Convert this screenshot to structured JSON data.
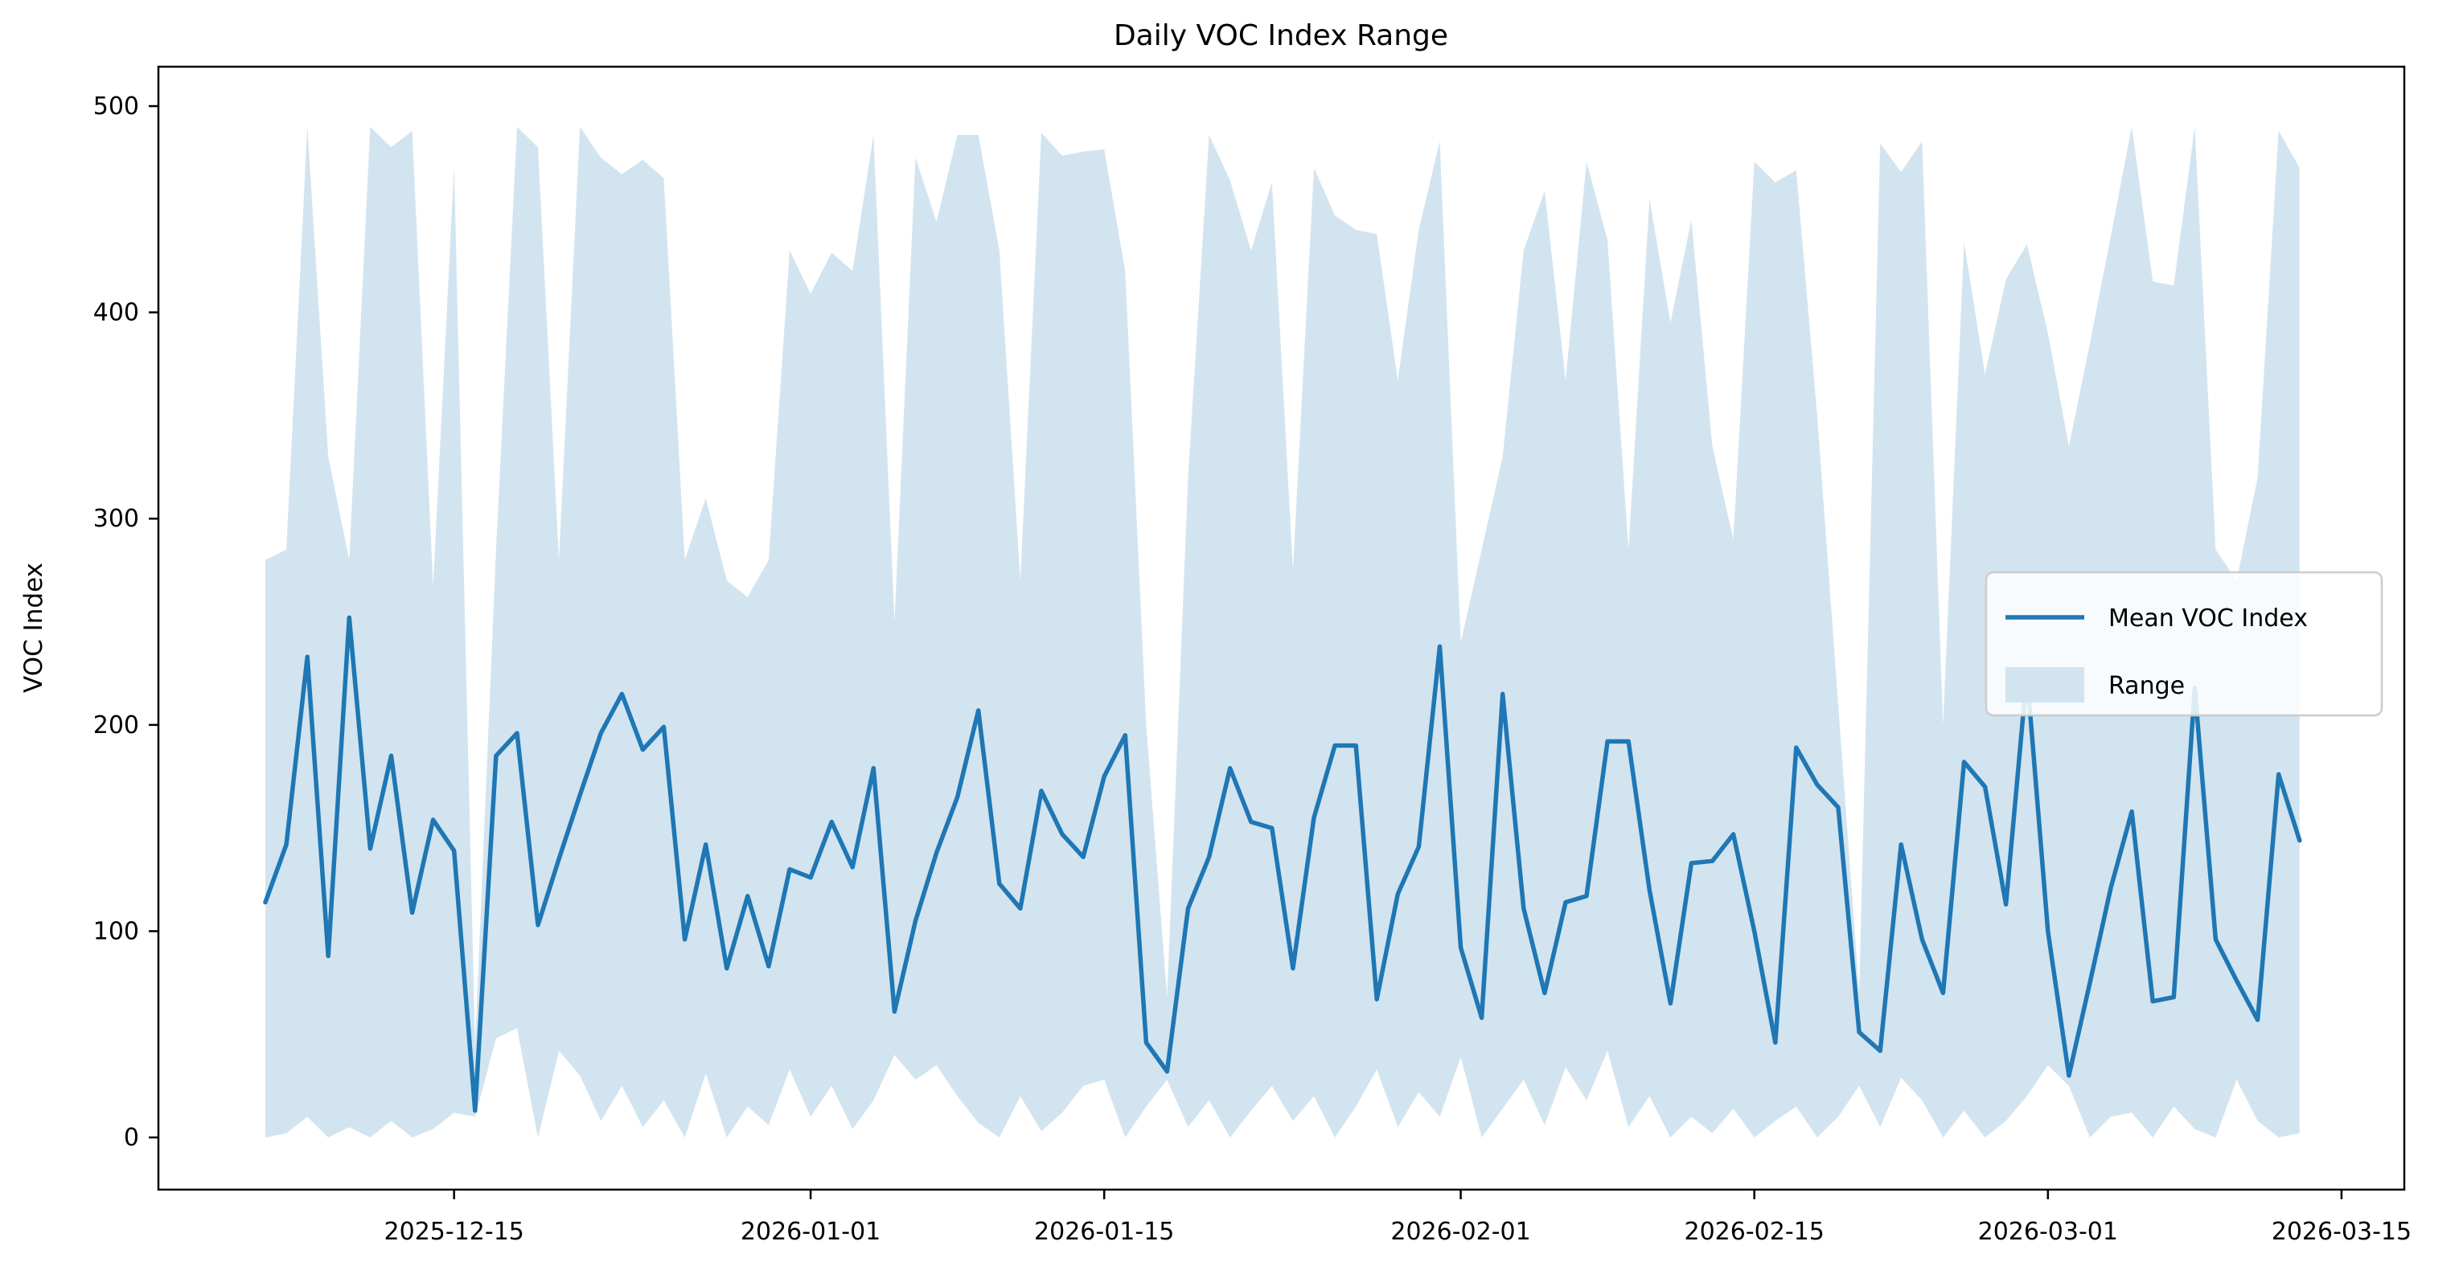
{
  "chart_data": {
    "type": "line",
    "title": "Daily VOC Index Range",
    "ylabel": "VOC Index",
    "xlabel": "",
    "legend": {
      "line_label": "Mean VOC Index",
      "band_label": "Range",
      "position": "center right"
    },
    "colors": {
      "line": "#1f77b4",
      "band": "#d2e4f0",
      "legend_border": "#cccccc",
      "spine": "#000000"
    },
    "ylim": [
      -25.3,
      519.1
    ],
    "y_ticks": [
      0,
      100,
      200,
      300,
      400,
      500
    ],
    "x_ticks": [
      "2025-12-15",
      "2026-01-01",
      "2026-01-15",
      "2026-02-01",
      "2026-02-15",
      "2026-03-01",
      "2026-03-15"
    ],
    "grid": false,
    "x_start_date": "2025-12-06",
    "dates": [
      "2025-12-06",
      "2025-12-07",
      "2025-12-08",
      "2025-12-09",
      "2025-12-10",
      "2025-12-11",
      "2025-12-12",
      "2025-12-13",
      "2025-12-14",
      "2025-12-15",
      "2025-12-16",
      "2025-12-17",
      "2025-12-18",
      "2025-12-19",
      "2025-12-20",
      "2025-12-21",
      "2025-12-22",
      "2025-12-23",
      "2025-12-24",
      "2025-12-25",
      "2025-12-26",
      "2025-12-27",
      "2025-12-28",
      "2025-12-29",
      "2025-12-30",
      "2025-12-31",
      "2026-01-01",
      "2026-01-02",
      "2026-01-03",
      "2026-01-04",
      "2026-01-05",
      "2026-01-06",
      "2026-01-07",
      "2026-01-08",
      "2026-01-09",
      "2026-01-10",
      "2026-01-11",
      "2026-01-12",
      "2026-01-13",
      "2026-01-14",
      "2026-01-15",
      "2026-01-16",
      "2026-01-17",
      "2026-01-18",
      "2026-01-19",
      "2026-01-20",
      "2026-01-21",
      "2026-01-22",
      "2026-01-23",
      "2026-01-24",
      "2026-01-25",
      "2026-01-26",
      "2026-01-27",
      "2026-01-28",
      "2026-01-29",
      "2026-01-30",
      "2026-01-31",
      "2026-02-01",
      "2026-02-02",
      "2026-02-03",
      "2026-02-04",
      "2026-02-05",
      "2026-02-06",
      "2026-02-07",
      "2026-02-08",
      "2026-02-09",
      "2026-02-10",
      "2026-02-11",
      "2026-02-12",
      "2026-02-13",
      "2026-02-14",
      "2026-02-15",
      "2026-02-16",
      "2026-02-17",
      "2026-02-18",
      "2026-02-19",
      "2026-02-20",
      "2026-02-21",
      "2026-02-22",
      "2026-02-23",
      "2026-02-24",
      "2026-02-25",
      "2026-02-26",
      "2026-02-27",
      "2026-02-28",
      "2026-03-01",
      "2026-03-02",
      "2026-03-03",
      "2026-03-04",
      "2026-03-05",
      "2026-03-06",
      "2026-03-07",
      "2026-03-08",
      "2026-03-09",
      "2026-03-10",
      "2026-03-11",
      "2026-03-12",
      "2026-03-13"
    ],
    "mean": [
      114,
      142,
      233,
      88,
      252,
      140,
      185,
      109,
      154,
      139,
      13,
      185,
      196,
      103,
      135,
      166,
      196,
      215,
      188,
      199,
      96,
      142,
      82,
      117,
      83,
      130,
      126,
      153,
      131,
      179,
      61,
      105,
      138,
      165,
      207,
      123,
      111,
      168,
      147,
      136,
      175,
      195,
      46,
      32,
      111,
      136,
      179,
      153,
      150,
      82,
      155,
      190,
      190,
      67,
      118,
      141,
      238,
      92,
      58,
      215,
      111,
      70,
      114,
      117,
      192,
      192,
      120,
      65,
      133,
      134,
      147,
      100,
      46,
      189,
      171,
      160,
      51,
      42,
      142,
      96,
      70,
      182,
      170,
      113,
      225,
      100,
      30,
      75,
      121,
      158,
      66,
      68,
      218,
      96,
      76,
      57,
      176,
      144
    ],
    "upper": [
      280,
      285,
      490,
      330,
      280,
      490,
      480,
      488,
      267,
      471,
      45,
      285,
      490,
      480,
      280,
      490,
      475,
      467,
      474,
      465,
      280,
      310,
      270,
      262,
      280,
      430,
      409,
      429,
      420,
      486,
      250,
      475,
      444,
      486,
      486,
      430,
      270,
      487,
      476,
      478,
      479,
      420,
      200,
      68,
      320,
      486,
      464,
      430,
      463,
      275,
      470,
      447,
      440,
      438,
      367,
      440,
      483,
      240,
      285,
      330,
      430,
      459,
      367,
      473,
      435,
      285,
      455,
      395,
      445,
      335,
      290,
      473,
      463,
      469,
      350,
      210,
      70,
      482,
      468,
      483,
      200,
      434,
      370,
      416,
      433,
      390,
      335,
      385,
      437,
      490,
      415,
      413,
      490,
      285,
      270,
      320,
      488,
      470
    ],
    "lower": [
      0,
      2,
      10,
      0,
      5,
      0,
      8,
      0,
      4,
      12,
      10,
      48,
      53,
      0,
      42,
      30,
      8,
      25,
      5,
      18,
      0,
      31,
      0,
      15,
      6,
      33,
      10,
      25,
      4,
      18,
      40,
      28,
      35,
      20,
      7,
      0,
      20,
      3,
      12,
      25,
      28,
      0,
      15,
      28,
      5,
      18,
      0,
      13,
      25,
      8,
      20,
      0,
      15,
      33,
      5,
      22,
      10,
      39,
      0,
      14,
      28,
      6,
      34,
      18,
      42,
      5,
      20,
      0,
      10,
      2,
      14,
      0,
      8,
      15,
      0,
      10,
      25,
      5,
      29,
      18,
      0,
      13,
      0,
      8,
      20,
      35,
      25,
      0,
      10,
      12,
      0,
      15,
      4,
      0,
      28,
      8,
      0,
      2
    ]
  }
}
